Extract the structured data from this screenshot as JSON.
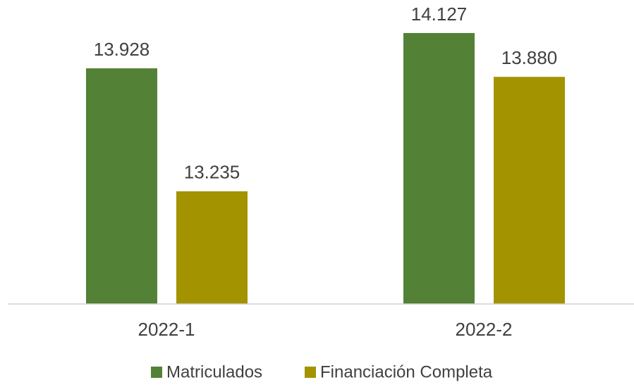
{
  "chart_data": {
    "type": "bar",
    "categories": [
      "2022-1",
      "2022-2"
    ],
    "series": [
      {
        "name": "Matriculados",
        "color": "#538135",
        "values": [
          13928,
          14127
        ],
        "value_labels": [
          "13.928",
          "14.127"
        ]
      },
      {
        "name": "Financiación Completa",
        "color": "#a39300",
        "values": [
          13235,
          13880
        ],
        "value_labels": [
          "13.235",
          "13.880"
        ]
      }
    ],
    "ylim": [
      12600,
      14300
    ],
    "legend": "bottom"
  }
}
